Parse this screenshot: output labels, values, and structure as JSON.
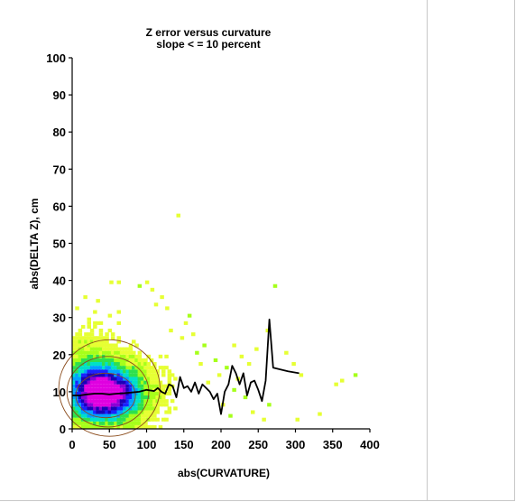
{
  "chart_data": {
    "type": "heatmap",
    "title": "Z error versus curvature",
    "subtitle": "slope < = 10 percent",
    "xlabel": "abs(CURVATURE)",
    "ylabel": "abs(DELTA Z), cm",
    "xlim": [
      0,
      400
    ],
    "ylim": [
      0,
      100
    ],
    "x_ticks": [
      "0",
      "50",
      "100",
      "150",
      "200",
      "250",
      "300",
      "350",
      "400"
    ],
    "y_ticks": [
      "0",
      "10",
      "20",
      "30",
      "40",
      "50",
      "60",
      "70",
      "80",
      "90",
      "100"
    ],
    "grid": false,
    "density_colors": [
      "#e6ff33",
      "#a6ff1a",
      "#2ee04d",
      "#00e0c8",
      "#00a0ff",
      "#1a22ff",
      "#1a00b8",
      "#8a00d6",
      "#e000e0"
    ],
    "contour_color": "#8a4a1a",
    "mean_line": {
      "name": "",
      "color": "#000000",
      "x": [
        0,
        10,
        20,
        30,
        40,
        50,
        60,
        70,
        80,
        90,
        100,
        110,
        115,
        120,
        125,
        130,
        135,
        140,
        145,
        150,
        155,
        160,
        165,
        170,
        175,
        180,
        185,
        190,
        195,
        200,
        205,
        210,
        215,
        220,
        225,
        230,
        235,
        240,
        245,
        250,
        255,
        260,
        265,
        270,
        280,
        290,
        305
      ],
      "y": [
        9,
        9,
        9.3,
        9.5,
        9.5,
        9.3,
        9.5,
        9.6,
        9.8,
        10,
        10.5,
        10.2,
        11,
        10,
        9.5,
        12,
        11.5,
        8.5,
        14,
        11,
        11.5,
        10,
        12.5,
        9.5,
        12,
        11,
        10,
        8,
        9.5,
        4,
        10,
        12,
        17,
        15,
        12,
        15,
        9,
        12.5,
        13,
        10.5,
        7.5,
        13,
        29.5,
        16.5,
        16,
        15.5,
        15
      ]
    }
  }
}
